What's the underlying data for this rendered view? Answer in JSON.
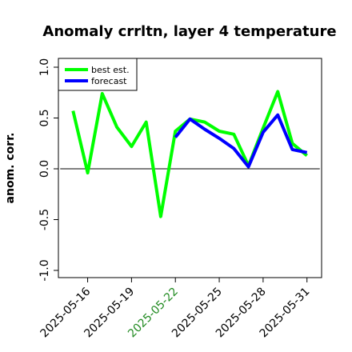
{
  "chart_data": {
    "type": "line",
    "title": "Anomaly crrltn, layer 4 temperature",
    "xlabel": "",
    "ylabel": "anom. corr.",
    "ylim": [
      -1.0,
      1.0
    ],
    "yticks": [
      "-1.0",
      "-0.5",
      "0.0",
      "0.5",
      "1.0"
    ],
    "ytick_values": [
      -1.0,
      -0.5,
      0.0,
      0.5,
      1.0
    ],
    "xticks": [
      "2025-05-16",
      "2025-05-19",
      "2025-05-22",
      "2025-05-25",
      "2025-05-28",
      "2025-05-31"
    ],
    "xtick_colors": [
      "#000000",
      "#000000",
      "#228b22",
      "#000000",
      "#000000",
      "#000000"
    ],
    "x": [
      "2025-05-15",
      "2025-05-16",
      "2025-05-17",
      "2025-05-18",
      "2025-05-19",
      "2025-05-20",
      "2025-05-21",
      "2025-05-22",
      "2025-05-23",
      "2025-05-24",
      "2025-05-25",
      "2025-05-26",
      "2025-05-27",
      "2025-05-28",
      "2025-05-29",
      "2025-05-30",
      "2025-05-31"
    ],
    "xlim": [
      "2025-05-14",
      "2025-06-01"
    ],
    "zero_line": 0.0,
    "grid": false,
    "legend_position": "top-left",
    "series": [
      {
        "name": "best est.",
        "color": "#00ff00",
        "values": [
          0.57,
          -0.04,
          0.74,
          0.41,
          0.22,
          0.46,
          -0.47,
          0.37,
          0.49,
          0.46,
          0.37,
          0.34,
          0.03,
          0.4,
          0.76,
          0.25,
          0.13
        ]
      },
      {
        "name": "forecast",
        "color": "#0000ff",
        "values": [
          null,
          null,
          null,
          null,
          null,
          null,
          null,
          0.31,
          0.49,
          0.39,
          0.3,
          0.2,
          0.02,
          0.36,
          0.53,
          0.19,
          0.16
        ]
      }
    ]
  }
}
